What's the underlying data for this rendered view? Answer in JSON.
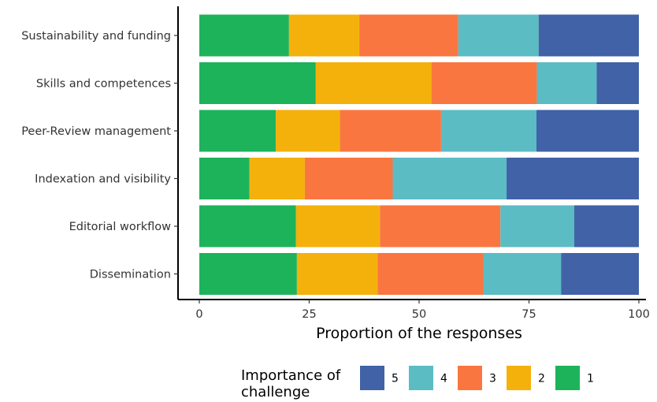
{
  "chart_data": {
    "type": "bar",
    "orientation": "horizontal",
    "stacked": true,
    "categories": [
      "Sustainability and funding",
      "Skills and competences",
      "Peer-Review management",
      "Indexation and visibility",
      "Editorial workflow",
      "Dissemination"
    ],
    "series": [
      {
        "name": "1",
        "color": "#1db35b",
        "values": [
          20.4,
          26.5,
          17.4,
          11.4,
          22.0,
          22.2
        ]
      },
      {
        "name": "2",
        "color": "#f4b10c",
        "values": [
          16.0,
          26.3,
          14.6,
          12.6,
          19.1,
          18.4
        ]
      },
      {
        "name": "3",
        "color": "#f97641",
        "values": [
          22.5,
          24.0,
          23.0,
          20.0,
          27.4,
          24.0
        ]
      },
      {
        "name": "4",
        "color": "#5bbcc4",
        "values": [
          18.3,
          13.6,
          21.7,
          25.9,
          16.8,
          17.7
        ]
      },
      {
        "name": "5",
        "color": "#4162a7",
        "values": [
          22.8,
          9.6,
          23.3,
          30.1,
          14.7,
          17.7
        ]
      }
    ],
    "xlabel": "Proportion of the responses",
    "ylabel": "",
    "xlim": [
      0,
      100
    ],
    "xticks": [
      "0",
      "25",
      "50",
      "75",
      "100"
    ],
    "legend": {
      "title_lines": [
        "Importance of",
        "challenge"
      ],
      "order": [
        "5",
        "4",
        "3",
        "2",
        "1"
      ],
      "position": "bottom"
    },
    "grid": false
  }
}
